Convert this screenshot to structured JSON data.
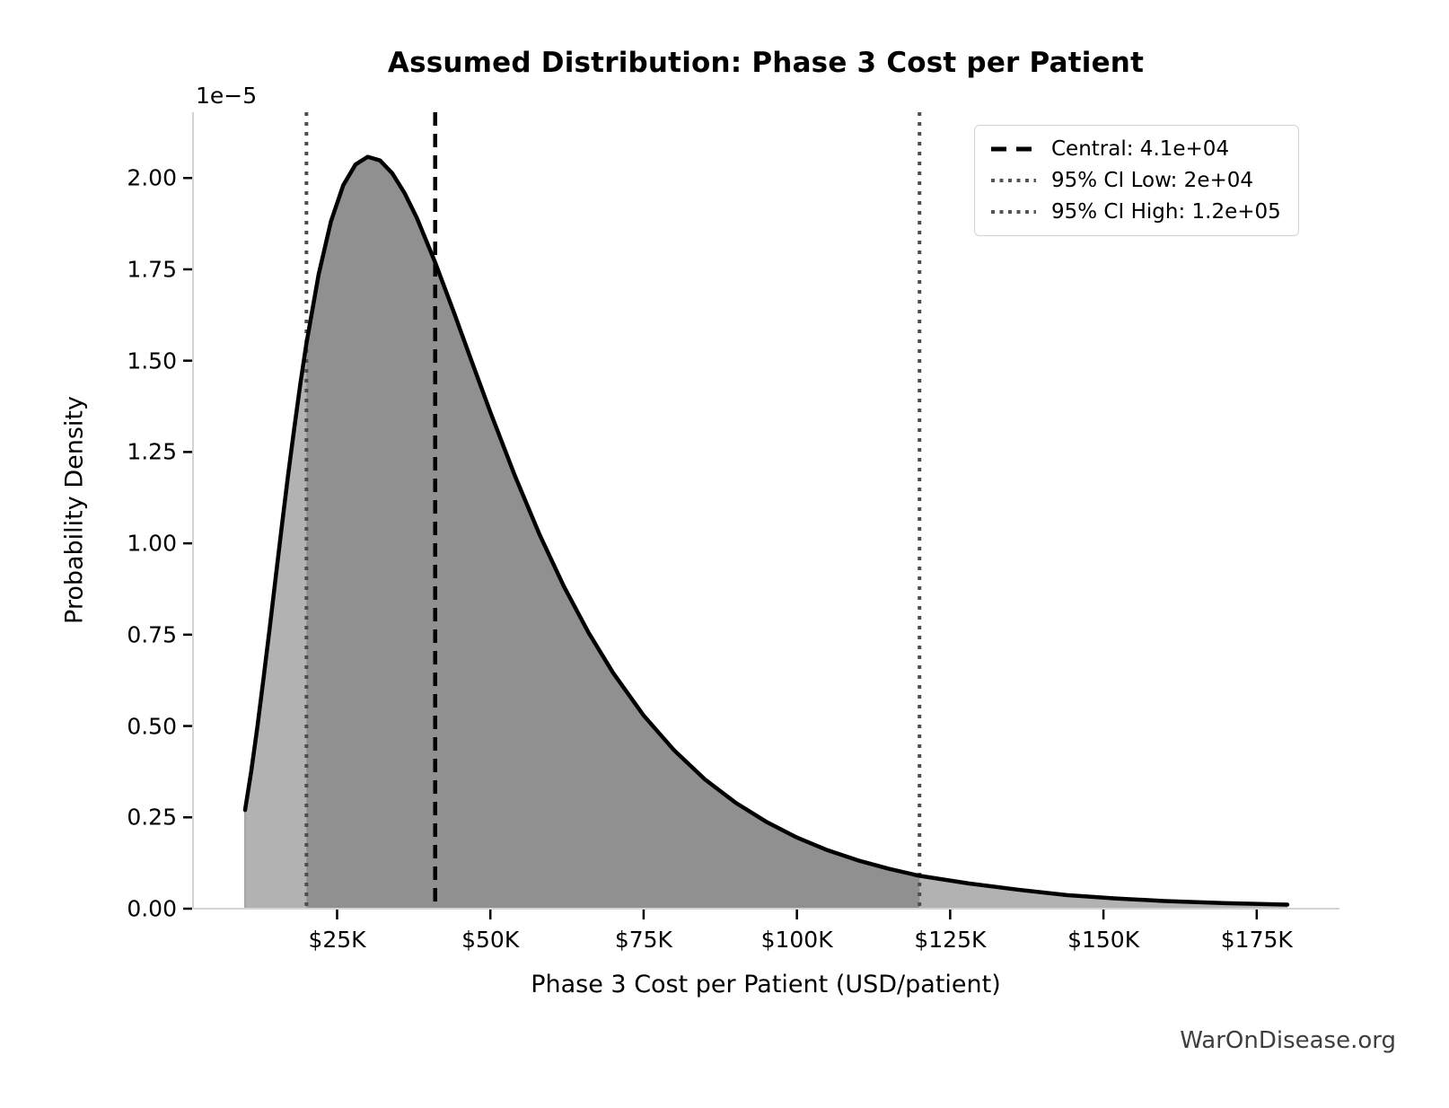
{
  "title": "Assumed Distribution: Phase 3 Cost per Patient",
  "watermark": "WarOnDisease.org",
  "chart_data": {
    "type": "area",
    "title": "Assumed Distribution: Phase 3 Cost per Patient",
    "xlabel": "Phase 3 Cost per Patient (USD/patient)",
    "ylabel": "Probability Density",
    "y_offset_label": "1e−5",
    "grid": false,
    "legend_position": "upper right",
    "xlim_thousands": [
      1.5,
      188.5
    ],
    "ylim_1e5": [
      0,
      2.18
    ],
    "x_tick_values_thousands": [
      25,
      50,
      75,
      100,
      125,
      150,
      175
    ],
    "x_tick_labels": [
      "$25K",
      "$50K",
      "$75K",
      "$100K",
      "$125K",
      "$150K",
      "$175K"
    ],
    "y_tick_values_1e5": [
      0,
      0.25,
      0.5,
      0.75,
      1.0,
      1.25,
      1.5,
      1.75,
      2.0
    ],
    "y_tick_labels": [
      "0.00",
      "0.25",
      "0.50",
      "0.75",
      "1.00",
      "1.25",
      "1.50",
      "1.75",
      "2.00"
    ],
    "central_value_thousands": 41,
    "ci_low_thousands": 20,
    "ci_high_thousands": 120,
    "legend": [
      {
        "label": "Central: 4.1e+04",
        "style": "dashed",
        "color": "#000000"
      },
      {
        "label": "95% CI Low: 2e+04",
        "style": "dotted",
        "color": "#555555"
      },
      {
        "label": "95% CI High: 1.2e+05",
        "style": "dotted",
        "color": "#555555"
      }
    ],
    "curve": {
      "x_thousands": [
        10,
        11,
        12,
        13,
        14,
        15,
        16,
        17,
        18,
        19,
        20,
        22,
        24,
        26,
        28,
        30,
        32,
        34,
        36,
        38,
        41,
        44,
        47,
        50,
        54,
        58,
        62,
        66,
        70,
        75,
        80,
        85,
        90,
        95,
        100,
        105,
        110,
        115,
        120,
        128,
        136,
        144,
        152,
        160,
        170,
        180
      ],
      "density_1e5": [
        0.27,
        0.377,
        0.498,
        0.63,
        0.768,
        0.909,
        1.049,
        1.185,
        1.314,
        1.436,
        1.547,
        1.737,
        1.881,
        1.98,
        2.037,
        2.058,
        2.048,
        2.013,
        1.959,
        1.891,
        1.769,
        1.635,
        1.496,
        1.359,
        1.185,
        1.025,
        0.882,
        0.756,
        0.646,
        0.529,
        0.433,
        0.354,
        0.29,
        0.238,
        0.195,
        0.16,
        0.132,
        0.109,
        0.09,
        0.069,
        0.052,
        0.037,
        0.028,
        0.021,
        0.015,
        0.011
      ]
    },
    "colors": {
      "curve": "#000000",
      "fill_tail": "#b2b2b2",
      "fill_ci": "#909090",
      "fill_edge": "#a6a6a6",
      "central_line": "#000000",
      "ci_line": "#4d4d4d",
      "spine": "#d4d4d4",
      "tick": "#000000",
      "watermark": "#3f3f3f"
    }
  }
}
